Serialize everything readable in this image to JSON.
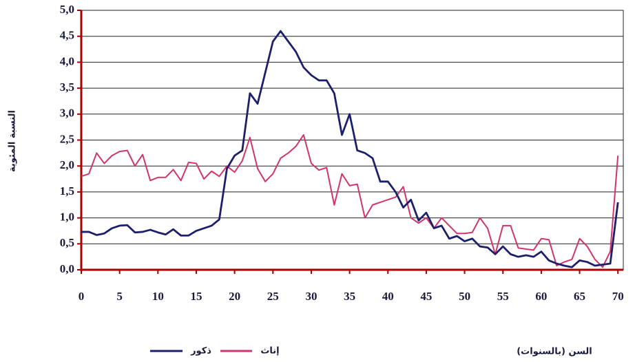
{
  "chart_data": {
    "type": "line",
    "ylabel": "النسبة المئوية",
    "xlabel": "السن (بالسنوات)",
    "x": [
      0,
      1,
      2,
      3,
      4,
      5,
      6,
      7,
      8,
      9,
      10,
      11,
      12,
      13,
      14,
      15,
      16,
      17,
      18,
      19,
      20,
      21,
      22,
      23,
      24,
      25,
      26,
      27,
      28,
      29,
      30,
      31,
      32,
      33,
      34,
      35,
      36,
      37,
      38,
      39,
      40,
      41,
      42,
      43,
      44,
      45,
      46,
      47,
      48,
      49,
      50,
      51,
      52,
      53,
      54,
      55,
      56,
      57,
      58,
      59,
      60,
      61,
      62,
      63,
      64,
      65,
      66,
      67,
      68,
      69,
      70
    ],
    "series": [
      {
        "name": "ذكور",
        "color": "#1c1f6b",
        "values": [
          0.73,
          0.73,
          0.67,
          0.7,
          0.8,
          0.85,
          0.86,
          0.72,
          0.73,
          0.77,
          0.72,
          0.68,
          0.78,
          0.66,
          0.66,
          0.75,
          0.8,
          0.85,
          0.97,
          1.95,
          2.2,
          2.3,
          3.4,
          3.2,
          3.8,
          4.4,
          4.6,
          4.4,
          4.2,
          3.9,
          3.75,
          3.65,
          3.65,
          3.4,
          2.6,
          3.0,
          2.3,
          2.25,
          2.15,
          1.7,
          1.7,
          1.5,
          1.2,
          1.35,
          0.95,
          1.1,
          0.8,
          0.85,
          0.6,
          0.65,
          0.55,
          0.6,
          0.45,
          0.43,
          0.3,
          0.45,
          0.3,
          0.25,
          0.28,
          0.25,
          0.35,
          0.18,
          0.12,
          0.08,
          0.05,
          0.18,
          0.15,
          0.08,
          0.1,
          0.12,
          1.3
        ]
      },
      {
        "name": "إناث",
        "color": "#d2336c",
        "values": [
          1.8,
          1.85,
          2.25,
          2.05,
          2.2,
          2.28,
          2.3,
          2.0,
          2.22,
          1.72,
          1.78,
          1.78,
          1.93,
          1.72,
          2.07,
          2.05,
          1.75,
          1.9,
          1.8,
          2.0,
          1.88,
          2.1,
          2.55,
          1.95,
          1.7,
          1.85,
          2.15,
          2.25,
          2.38,
          2.6,
          2.05,
          1.92,
          1.97,
          1.25,
          1.85,
          1.62,
          1.65,
          1.0,
          1.25,
          1.3,
          1.35,
          1.4,
          1.6,
          1.0,
          0.9,
          1.0,
          0.8,
          1.0,
          0.85,
          0.7,
          0.7,
          0.72,
          1.0,
          0.8,
          0.3,
          0.85,
          0.85,
          0.42,
          0.4,
          0.38,
          0.6,
          0.58,
          0.08,
          0.15,
          0.2,
          0.6,
          0.45,
          0.2,
          0.05,
          0.35,
          2.2
        ]
      }
    ],
    "xlim": [
      0,
      70.7
    ],
    "xticks": [
      0,
      5,
      10,
      15,
      20,
      25,
      30,
      35,
      40,
      45,
      50,
      55,
      60,
      65,
      70
    ],
    "ylim": [
      0,
      5
    ],
    "yticks": [
      {
        "value": 0,
        "label": "0,0"
      },
      {
        "value": 0.5,
        "label": "0,5"
      },
      {
        "value": 1,
        "label": "1,0"
      },
      {
        "value": 1.5,
        "label": "1,5"
      },
      {
        "value": 2,
        "label": "2,0"
      },
      {
        "value": 2.5,
        "label": "2,5"
      },
      {
        "value": 3,
        "label": "3,0"
      },
      {
        "value": 3.5,
        "label": "3,5"
      },
      {
        "value": 4,
        "label": "4,0"
      },
      {
        "value": 4.5,
        "label": "4,5"
      },
      {
        "value": 5,
        "label": "5,0"
      }
    ],
    "grid": true
  }
}
